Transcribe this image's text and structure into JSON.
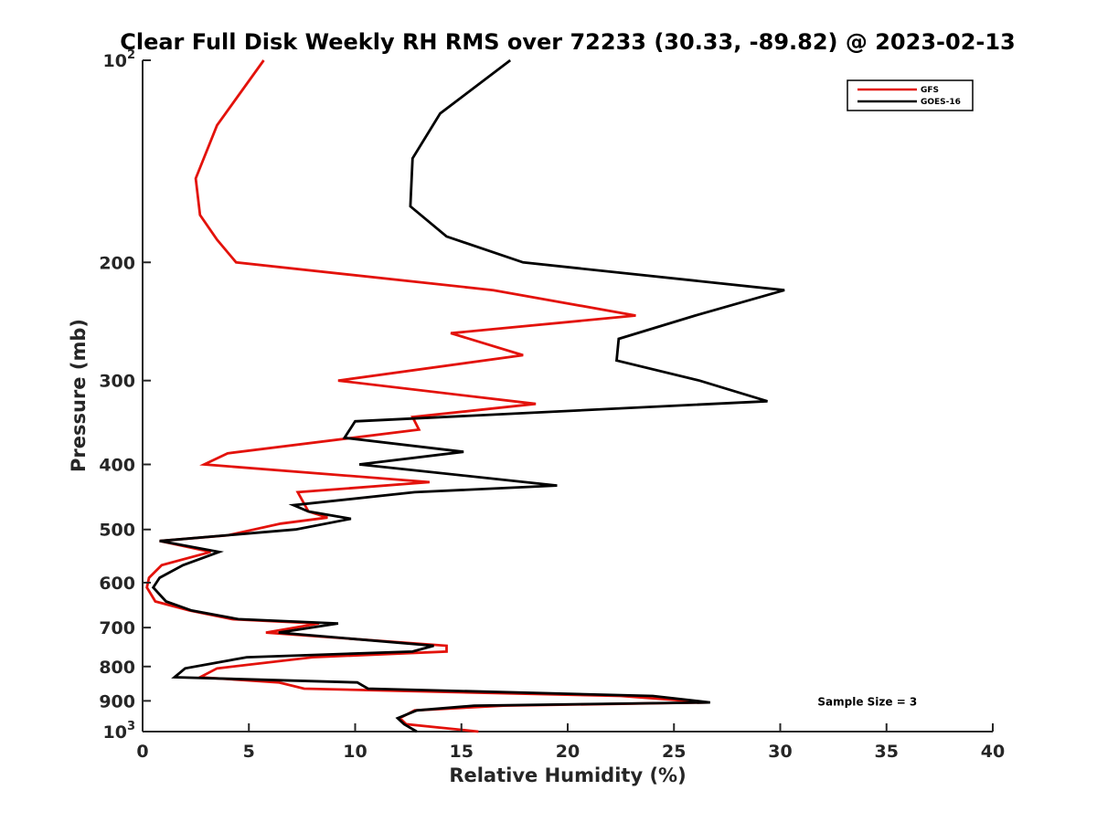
{
  "chart_data": {
    "type": "line",
    "title": "Clear Full Disk Weekly RH RMS over 72233 (30.33, -89.82) @ 2023-02-13",
    "xlabel": "Relative Humidity (%)",
    "ylabel": "Pressure (mb)",
    "xlim": [
      0,
      40
    ],
    "ylim": [
      100,
      1000
    ],
    "y_scale": "log",
    "y_reversed": true,
    "xticks": [
      "0",
      "5",
      "10",
      "15",
      "20",
      "25",
      "30",
      "35",
      "40"
    ],
    "yticks": [
      {
        "value": 100,
        "base": "10",
        "sup": "2"
      },
      {
        "value": 200,
        "base": "200",
        "sup": ""
      },
      {
        "value": 300,
        "base": "300",
        "sup": ""
      },
      {
        "value": 400,
        "base": "400",
        "sup": ""
      },
      {
        "value": 500,
        "base": "500",
        "sup": ""
      },
      {
        "value": 600,
        "base": "600",
        "sup": ""
      },
      {
        "value": 700,
        "base": "700",
        "sup": ""
      },
      {
        "value": 800,
        "base": "800",
        "sup": ""
      },
      {
        "value": 900,
        "base": "900",
        "sup": ""
      },
      {
        "value": 1000,
        "base": "10",
        "sup": "3"
      }
    ],
    "grid": false,
    "legend_position": "top-right",
    "series": [
      {
        "name": "GFS",
        "color": "#e3120b",
        "points": [
          [
            5.7,
            100
          ],
          [
            3.5,
            125
          ],
          [
            2.5,
            150
          ],
          [
            2.7,
            170
          ],
          [
            3.5,
            185
          ],
          [
            4.4,
            200
          ],
          [
            16.5,
            220
          ],
          [
            23.2,
            240
          ],
          [
            14.5,
            255
          ],
          [
            17.9,
            275
          ],
          [
            9.2,
            300
          ],
          [
            18.5,
            325
          ],
          [
            12.7,
            340
          ],
          [
            13.0,
            355
          ],
          [
            4.0,
            385
          ],
          [
            2.9,
            400
          ],
          [
            13.5,
            425
          ],
          [
            7.3,
            440
          ],
          [
            7.8,
            470
          ],
          [
            8.7,
            480
          ],
          [
            6.5,
            490
          ],
          [
            4.0,
            510
          ],
          [
            0.8,
            520
          ],
          [
            3.2,
            540
          ],
          [
            0.9,
            565
          ],
          [
            0.3,
            590
          ],
          [
            0.2,
            610
          ],
          [
            0.6,
            640
          ],
          [
            2.2,
            660
          ],
          [
            4.2,
            680
          ],
          [
            8.3,
            690
          ],
          [
            5.8,
            712
          ],
          [
            14.3,
            745
          ],
          [
            14.3,
            760
          ],
          [
            8.0,
            775
          ],
          [
            3.5,
            805
          ],
          [
            2.7,
            830
          ],
          [
            6.4,
            845
          ],
          [
            7.6,
            863
          ],
          [
            22.5,
            885
          ],
          [
            26.6,
            905
          ],
          [
            17.0,
            915
          ],
          [
            12.8,
            930
          ],
          [
            12.1,
            955
          ],
          [
            12.4,
            975
          ],
          [
            15.8,
            1000
          ]
        ]
      },
      {
        "name": "GOES-16",
        "color": "#000000",
        "points": [
          [
            17.3,
            100
          ],
          [
            14.0,
            120
          ],
          [
            12.7,
            140
          ],
          [
            12.6,
            165
          ],
          [
            14.3,
            183
          ],
          [
            17.9,
            200
          ],
          [
            30.2,
            220
          ],
          [
            26.0,
            240
          ],
          [
            22.4,
            260
          ],
          [
            22.3,
            280
          ],
          [
            26.2,
            300
          ],
          [
            29.4,
            322
          ],
          [
            10.0,
            345
          ],
          [
            9.5,
            365
          ],
          [
            15.1,
            383
          ],
          [
            10.2,
            400
          ],
          [
            19.5,
            430
          ],
          [
            12.8,
            440
          ],
          [
            7.1,
            460
          ],
          [
            7.8,
            470
          ],
          [
            9.8,
            482
          ],
          [
            7.2,
            500
          ],
          [
            0.8,
            520
          ],
          [
            3.6,
            540
          ],
          [
            1.9,
            565
          ],
          [
            0.8,
            590
          ],
          [
            0.5,
            610
          ],
          [
            1.1,
            640
          ],
          [
            2.3,
            660
          ],
          [
            4.5,
            680
          ],
          [
            9.2,
            690
          ],
          [
            6.4,
            712
          ],
          [
            13.7,
            745
          ],
          [
            12.7,
            760
          ],
          [
            4.9,
            775
          ],
          [
            2.0,
            805
          ],
          [
            1.5,
            830
          ],
          [
            10.1,
            845
          ],
          [
            10.6,
            863
          ],
          [
            24.0,
            885
          ],
          [
            26.7,
            905
          ],
          [
            15.6,
            915
          ],
          [
            12.9,
            930
          ],
          [
            12.0,
            955
          ],
          [
            12.3,
            975
          ],
          [
            12.9,
            1000
          ]
        ]
      }
    ],
    "annotations": [
      {
        "text": "Sample Size = 3",
        "x": 35.5,
        "y": 900
      }
    ]
  }
}
